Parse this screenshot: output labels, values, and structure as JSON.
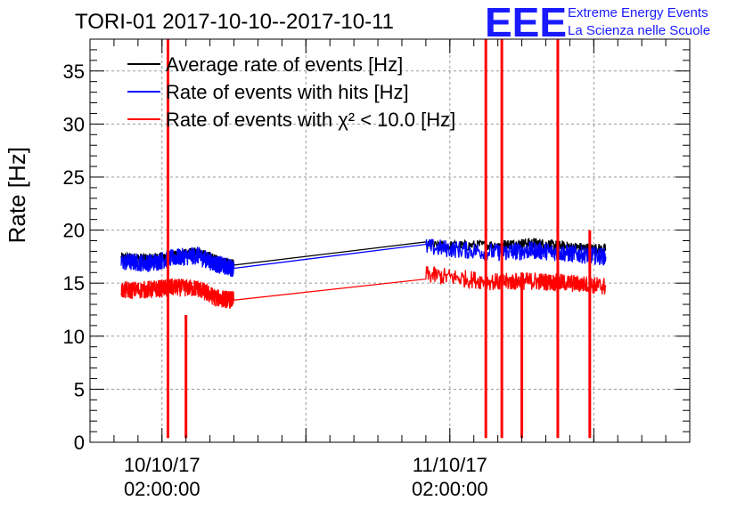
{
  "logo": {
    "letters": "EEE",
    "line1": "Extreme Energy Events",
    "line2": "La Scienza nelle Scuole",
    "color": "#1a1aff"
  },
  "chart_data": {
    "type": "line",
    "title": "TORI-01 2017-10-10--2017-10-11",
    "ylabel": "Rate [Hz]",
    "xlabel": "",
    "ylim": [
      0,
      38
    ],
    "yticks": [
      0,
      5,
      10,
      15,
      20,
      25,
      30,
      35
    ],
    "xlim": [
      "2017-10-09T20:00:00",
      "2017-10-11T22:00:00"
    ],
    "xticks": [
      {
        "date": "10/10/17",
        "time": "02:00:00",
        "x": "2017-10-10T02:00:00"
      },
      {
        "date": "11/10/17",
        "time": "02:00:00",
        "x": "2017-10-11T02:00:00"
      }
    ],
    "grid": true,
    "legend_position": "top-left",
    "series": [
      {
        "name": "Average rate of events [Hz]",
        "color": "#000000",
        "points": [
          [
            "2017-10-09T22:36:00",
            17.4
          ],
          [
            "2017-10-10T01:00:00",
            17.3
          ],
          [
            "2017-10-10T03:00:00",
            17.6
          ],
          [
            "2017-10-10T05:00:00",
            17.9
          ],
          [
            "2017-10-10T06:30:00",
            17.2
          ],
          [
            "2017-10-10T08:00:00",
            16.7
          ],
          [
            "2017-10-11T00:00:00",
            18.5
          ],
          [
            "2017-10-11T06:00:00",
            18.6
          ],
          [
            "2017-10-11T09:00:00",
            18.8
          ],
          [
            "2017-10-11T12:00:00",
            18.4
          ],
          [
            "2017-10-11T15:00:00",
            18.2
          ]
        ]
      },
      {
        "name": "Rate of events with hits [Hz]",
        "color": "#0000ff",
        "points": [
          [
            "2017-10-09T22:36:00",
            17.0
          ],
          [
            "2017-10-10T01:00:00",
            16.9
          ],
          [
            "2017-10-10T03:00:00",
            17.4
          ],
          [
            "2017-10-10T05:00:00",
            17.6
          ],
          [
            "2017-10-10T06:30:00",
            16.8
          ],
          [
            "2017-10-10T08:00:00",
            16.4
          ],
          [
            "2017-10-11T00:00:00",
            18.4
          ],
          [
            "2017-10-11T06:00:00",
            17.9
          ],
          [
            "2017-10-11T09:00:00",
            18.1
          ],
          [
            "2017-10-11T12:00:00",
            17.8
          ],
          [
            "2017-10-11T15:00:00",
            17.5
          ]
        ]
      },
      {
        "name": "Rate of events with χ² < 10.0 [Hz]",
        "color": "#ff0000",
        "points": [
          [
            "2017-10-09T22:36:00",
            14.3
          ],
          [
            "2017-10-10T01:00:00",
            14.4
          ],
          [
            "2017-10-10T03:00:00",
            14.6
          ],
          [
            "2017-10-10T05:00:00",
            14.5
          ],
          [
            "2017-10-10T06:30:00",
            13.6
          ],
          [
            "2017-10-10T08:00:00",
            13.4
          ],
          [
            "2017-10-11T00:00:00",
            15.8
          ],
          [
            "2017-10-11T06:00:00",
            15.1
          ],
          [
            "2017-10-11T09:00:00",
            15.2
          ],
          [
            "2017-10-11T12:00:00",
            15.0
          ],
          [
            "2017-10-11T15:00:00",
            14.7
          ]
        ]
      }
    ],
    "spikes": [
      {
        "x": "2017-10-10T02:30:00",
        "ymin": 0.4,
        "ymax": 38
      },
      {
        "x": "2017-10-10T04:00:00",
        "ymin": 0.4,
        "ymax": 12
      },
      {
        "x": "2017-10-11T05:00:00",
        "ymin": 0.4,
        "ymax": 38
      },
      {
        "x": "2017-10-11T06:20:00",
        "ymin": 0.4,
        "ymax": 38
      },
      {
        "x": "2017-10-11T08:00:00",
        "ymin": 0.4,
        "ymax": 16
      },
      {
        "x": "2017-10-11T11:00:00",
        "ymin": 0.4,
        "ymax": 38
      },
      {
        "x": "2017-10-11T13:40:00",
        "ymin": 0.4,
        "ymax": 20
      }
    ]
  }
}
